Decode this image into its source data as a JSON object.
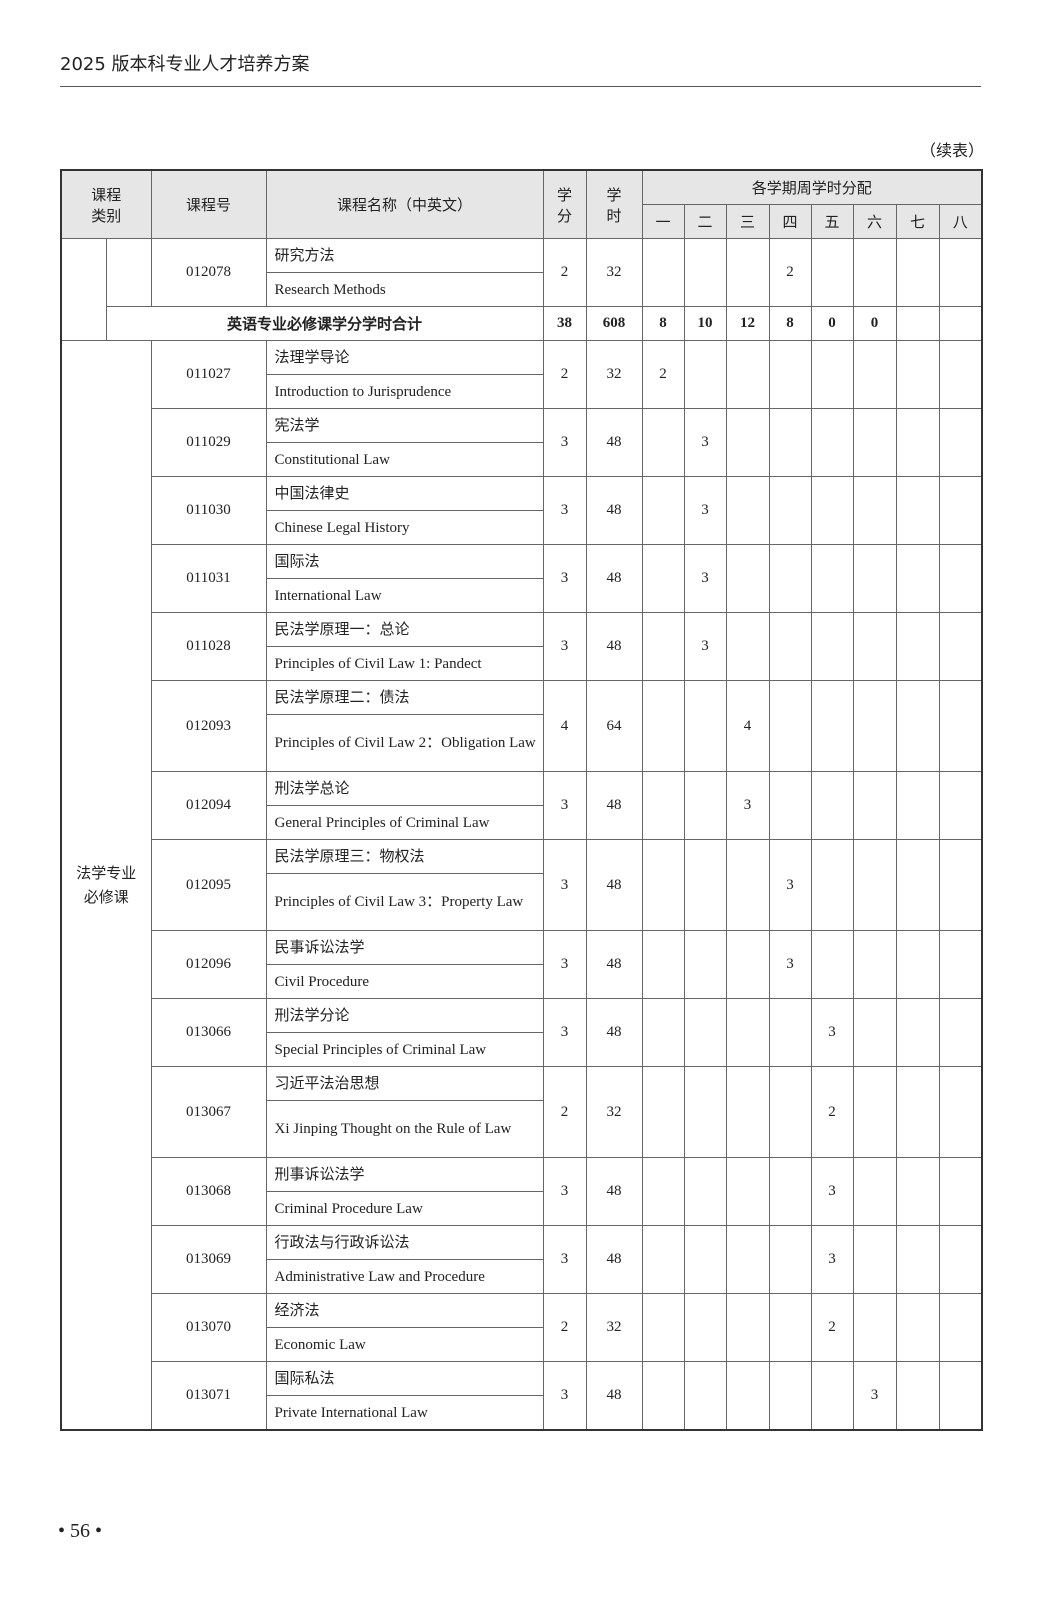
{
  "header": {
    "running_title": "2025 版本科专业人才培养方案",
    "continued": "（续表）"
  },
  "table": {
    "headers": {
      "category": "课程\n类别",
      "code": "课程号",
      "name": "课程名称（中英文）",
      "credits": "学\n分",
      "hours": "学\n时",
      "semester_group": "各学期周学时分配",
      "semesters": [
        "一",
        "二",
        "三",
        "四",
        "五",
        "六",
        "七",
        "八"
      ]
    },
    "section1": {
      "courses": [
        {
          "code": "012078",
          "cn": "研究方法",
          "en": "Research Methods",
          "credits": "2",
          "hours": "32",
          "sem": [
            "",
            "",
            "",
            "2",
            "",
            "",
            "",
            ""
          ]
        }
      ],
      "total": {
        "label": "英语专业必修课学分学时合计",
        "credits": "38",
        "hours": "608",
        "sem": [
          "8",
          "10",
          "12",
          "8",
          "0",
          "0",
          "",
          ""
        ]
      }
    },
    "section2": {
      "category": "法学专业\n必修课",
      "courses": [
        {
          "code": "011027",
          "cn": "法理学导论",
          "en": "Introduction to Jurisprudence",
          "credits": "2",
          "hours": "32",
          "sem": [
            "2",
            "",
            "",
            "",
            "",
            "",
            "",
            ""
          ]
        },
        {
          "code": "011029",
          "cn": "宪法学",
          "en": "Constitutional Law",
          "credits": "3",
          "hours": "48",
          "sem": [
            "",
            "3",
            "",
            "",
            "",
            "",
            "",
            ""
          ]
        },
        {
          "code": "011030",
          "cn": "中国法律史",
          "en": "Chinese Legal History",
          "credits": "3",
          "hours": "48",
          "sem": [
            "",
            "3",
            "",
            "",
            "",
            "",
            "",
            ""
          ]
        },
        {
          "code": "011031",
          "cn": "国际法",
          "en": "International Law",
          "credits": "3",
          "hours": "48",
          "sem": [
            "",
            "3",
            "",
            "",
            "",
            "",
            "",
            ""
          ]
        },
        {
          "code": "011028",
          "cn": "民法学原理一：总论",
          "en": "Principles of Civil Law 1: Pandect",
          "credits": "3",
          "hours": "48",
          "sem": [
            "",
            "3",
            "",
            "",
            "",
            "",
            "",
            ""
          ]
        },
        {
          "code": "012093",
          "cn": "民法学原理二：债法",
          "en": "Principles of Civil Law 2：Obligation Law",
          "credits": "4",
          "hours": "64",
          "sem": [
            "",
            "",
            "4",
            "",
            "",
            "",
            "",
            ""
          ]
        },
        {
          "code": "012094",
          "cn": "刑法学总论",
          "en": "General Principles of Criminal Law",
          "credits": "3",
          "hours": "48",
          "sem": [
            "",
            "",
            "3",
            "",
            "",
            "",
            "",
            ""
          ]
        },
        {
          "code": "012095",
          "cn": "民法学原理三：物权法",
          "en": "Principles of Civil Law 3：Property Law",
          "credits": "3",
          "hours": "48",
          "sem": [
            "",
            "",
            "",
            "3",
            "",
            "",
            "",
            ""
          ]
        },
        {
          "code": "012096",
          "cn": "民事诉讼法学",
          "en": "Civil Procedure",
          "credits": "3",
          "hours": "48",
          "sem": [
            "",
            "",
            "",
            "3",
            "",
            "",
            "",
            ""
          ]
        },
        {
          "code": "013066",
          "cn": "刑法学分论",
          "en": "Special Principles of Criminal Law",
          "credits": "3",
          "hours": "48",
          "sem": [
            "",
            "",
            "",
            "",
            "3",
            "",
            "",
            ""
          ]
        },
        {
          "code": "013067",
          "cn": "习近平法治思想",
          "en": "Xi Jinping Thought on the Rule of Law",
          "credits": "2",
          "hours": "32",
          "sem": [
            "",
            "",
            "",
            "",
            "2",
            "",
            "",
            ""
          ]
        },
        {
          "code": "013068",
          "cn": "刑事诉讼法学",
          "en": "Criminal Procedure Law",
          "credits": "3",
          "hours": "48",
          "sem": [
            "",
            "",
            "",
            "",
            "3",
            "",
            "",
            ""
          ]
        },
        {
          "code": "013069",
          "cn": "行政法与行政诉讼法",
          "en": "Administrative Law and Procedure",
          "credits": "3",
          "hours": "48",
          "sem": [
            "",
            "",
            "",
            "",
            "3",
            "",
            "",
            ""
          ]
        },
        {
          "code": "013070",
          "cn": "经济法",
          "en": "Economic Law",
          "credits": "2",
          "hours": "32",
          "sem": [
            "",
            "",
            "",
            "",
            "2",
            "",
            "",
            ""
          ]
        },
        {
          "code": "013071",
          "cn": "国际私法",
          "en": "Private International Law",
          "credits": "3",
          "hours": "48",
          "sem": [
            "",
            "",
            "",
            "",
            "",
            "3",
            "",
            ""
          ]
        }
      ]
    }
  },
  "footer": {
    "page_number": "• 56 •"
  }
}
